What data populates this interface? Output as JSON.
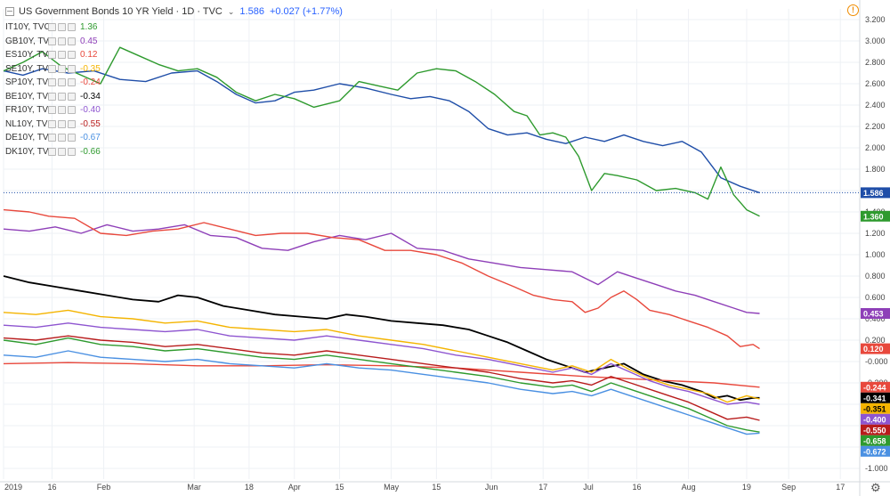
{
  "header": {
    "title": "US Government Bonds 10 YR Yield · 1D · TVC",
    "last": "1.586",
    "change": "+0.027 (+1.77%)"
  },
  "legend": [
    {
      "name": "IT10Y, TVC",
      "value": "1.36",
      "color": "#2e9a2e"
    },
    {
      "name": "GB10Y, TVC",
      "value": "0.45",
      "color": "#8e3fb8"
    },
    {
      "name": "ES10Y, TVC",
      "value": "0.12",
      "color": "#e8483c"
    },
    {
      "name": "SE10Y, TVC",
      "value": "-0.35",
      "color": "#f4b400"
    },
    {
      "name": "SP10Y, TVC",
      "value": "-0.24",
      "color": "#e8483c"
    },
    {
      "name": "BE10Y, TVC",
      "value": "-0.34",
      "color": "#000000"
    },
    {
      "name": "FR10Y, TVC",
      "value": "-0.40",
      "color": "#8e55d0"
    },
    {
      "name": "NL10Y, TVC",
      "value": "-0.55",
      "color": "#b81c1c"
    },
    {
      "name": "DE10Y, TVC",
      "value": "-0.67",
      "color": "#4a90e2"
    },
    {
      "name": "DK10Y, TVC",
      "value": "-0.66",
      "color": "#2e9a2e"
    }
  ],
  "chart_data": {
    "type": "line",
    "title": "US Government Bonds 10 YR Yield",
    "ylim": [
      -1.1,
      3.3
    ],
    "y_ticks": [
      "3.200",
      "3.000",
      "2.800",
      "2.600",
      "2.400",
      "2.200",
      "2.000",
      "1.800",
      "1.600",
      "1.400",
      "1.200",
      "1.000",
      "0.800",
      "0.600",
      "0.400",
      "0.200",
      "-0.000",
      "-0.200",
      "-0.400",
      "-0.600",
      "-0.800",
      "-1.000"
    ],
    "y_tick_values": [
      3.2,
      3.0,
      2.8,
      2.6,
      2.4,
      2.2,
      2.0,
      1.8,
      1.6,
      1.4,
      1.2,
      1.0,
      0.8,
      0.6,
      0.4,
      0.2,
      0.0,
      -0.2,
      -0.4,
      -0.6,
      -0.8,
      -1.0
    ],
    "x_ticks": [
      "2019",
      "16",
      "Feb",
      "Mar",
      "18",
      "Apr",
      "15",
      "May",
      "15",
      "Jun",
      "17",
      "Jul",
      "16",
      "Aug",
      "19",
      "Sep",
      "17"
    ],
    "x_tick_days": [
      0,
      15,
      31,
      59,
      76,
      90,
      104,
      120,
      134,
      151,
      167,
      181,
      196,
      212,
      230,
      243,
      259
    ],
    "grid": true,
    "series": [
      {
        "name": "US10Y",
        "color": "#1f4ea8",
        "last_label": "1.586",
        "x": [
          0,
          6,
          12,
          20,
          28,
          36,
          44,
          52,
          60,
          66,
          72,
          78,
          84,
          90,
          96,
          104,
          112,
          120,
          126,
          132,
          138,
          144,
          150,
          156,
          162,
          168,
          174,
          180,
          186,
          192,
          198,
          204,
          210,
          216,
          222,
          228,
          234
        ],
        "y": [
          2.72,
          2.68,
          2.74,
          2.7,
          2.72,
          2.64,
          2.62,
          2.7,
          2.72,
          2.62,
          2.5,
          2.42,
          2.44,
          2.52,
          2.54,
          2.6,
          2.56,
          2.5,
          2.46,
          2.48,
          2.44,
          2.34,
          2.18,
          2.12,
          2.14,
          2.08,
          2.04,
          2.1,
          2.06,
          2.12,
          2.06,
          2.02,
          2.06,
          1.96,
          1.72,
          1.64,
          1.58
        ]
      },
      {
        "name": "IT10Y",
        "color": "#2e9a2e",
        "last_label": "1.360",
        "x": [
          0,
          6,
          12,
          18,
          24,
          30,
          36,
          42,
          48,
          54,
          60,
          66,
          72,
          78,
          84,
          90,
          96,
          104,
          110,
          116,
          122,
          128,
          134,
          140,
          146,
          152,
          158,
          162,
          166,
          170,
          174,
          178,
          182,
          186,
          190,
          196,
          202,
          208,
          214,
          218,
          222,
          226,
          230,
          234
        ],
        "y": [
          2.72,
          2.8,
          2.9,
          2.76,
          2.68,
          2.6,
          2.94,
          2.86,
          2.78,
          2.72,
          2.74,
          2.66,
          2.52,
          2.44,
          2.5,
          2.46,
          2.38,
          2.44,
          2.62,
          2.58,
          2.54,
          2.7,
          2.74,
          2.72,
          2.62,
          2.5,
          2.34,
          2.3,
          2.12,
          2.14,
          2.1,
          1.92,
          1.6,
          1.76,
          1.74,
          1.7,
          1.6,
          1.62,
          1.58,
          1.52,
          1.82,
          1.56,
          1.42,
          1.36
        ]
      },
      {
        "name": "GB10Y",
        "color": "#8e3fb8",
        "last_label": "0.453",
        "x": [
          0,
          8,
          16,
          24,
          32,
          40,
          48,
          56,
          64,
          72,
          80,
          88,
          96,
          104,
          112,
          120,
          128,
          136,
          144,
          152,
          160,
          168,
          176,
          184,
          190,
          196,
          202,
          208,
          214,
          220,
          226,
          230,
          234
        ],
        "y": [
          1.24,
          1.22,
          1.26,
          1.2,
          1.28,
          1.22,
          1.24,
          1.28,
          1.18,
          1.16,
          1.06,
          1.04,
          1.12,
          1.18,
          1.14,
          1.2,
          1.06,
          1.04,
          0.96,
          0.92,
          0.88,
          0.86,
          0.84,
          0.72,
          0.84,
          0.78,
          0.72,
          0.66,
          0.62,
          0.56,
          0.5,
          0.46,
          0.45
        ]
      },
      {
        "name": "ES10Y",
        "color": "#e8483c",
        "last_label": "0.120",
        "x": [
          0,
          8,
          14,
          22,
          30,
          38,
          46,
          54,
          62,
          70,
          78,
          86,
          94,
          102,
          110,
          118,
          126,
          134,
          142,
          150,
          158,
          164,
          170,
          176,
          180,
          184,
          188,
          192,
          196,
          200,
          206,
          212,
          218,
          224,
          228,
          232,
          234
        ],
        "y": [
          1.42,
          1.4,
          1.36,
          1.34,
          1.2,
          1.18,
          1.22,
          1.24,
          1.3,
          1.24,
          1.18,
          1.2,
          1.2,
          1.16,
          1.14,
          1.04,
          1.04,
          1.0,
          0.92,
          0.8,
          0.7,
          0.62,
          0.58,
          0.56,
          0.46,
          0.5,
          0.6,
          0.66,
          0.58,
          0.48,
          0.44,
          0.38,
          0.32,
          0.24,
          0.14,
          0.16,
          0.12
        ]
      },
      {
        "name": "BE10Y",
        "color": "#000000",
        "last_label": "-0.341",
        "x": [
          0,
          8,
          16,
          24,
          32,
          40,
          48,
          54,
          60,
          68,
          76,
          84,
          92,
          100,
          106,
          112,
          120,
          128,
          136,
          144,
          150,
          156,
          162,
          168,
          174,
          180,
          186,
          192,
          198,
          204,
          210,
          216,
          220,
          224,
          228,
          232,
          234
        ],
        "y": [
          0.8,
          0.74,
          0.7,
          0.66,
          0.62,
          0.58,
          0.56,
          0.62,
          0.6,
          0.52,
          0.48,
          0.44,
          0.42,
          0.4,
          0.44,
          0.42,
          0.38,
          0.36,
          0.34,
          0.3,
          0.24,
          0.18,
          0.1,
          0.02,
          -0.04,
          -0.1,
          -0.06,
          -0.02,
          -0.12,
          -0.18,
          -0.22,
          -0.28,
          -0.34,
          -0.32,
          -0.36,
          -0.34,
          -0.34
        ]
      },
      {
        "name": "SP10Y",
        "color": "#e8483c",
        "last_label": "-0.244",
        "x": [
          0,
          20,
          40,
          60,
          80,
          100,
          120,
          140,
          160,
          180,
          200,
          220,
          234
        ],
        "y": [
          -0.02,
          -0.01,
          -0.02,
          -0.04,
          -0.04,
          -0.03,
          -0.04,
          -0.06,
          -0.1,
          -0.14,
          -0.17,
          -0.2,
          -0.24
        ]
      },
      {
        "name": "SE10Y",
        "color": "#f4b400",
        "last_label": "-0.351",
        "x": [
          0,
          10,
          20,
          30,
          40,
          50,
          60,
          70,
          80,
          90,
          100,
          110,
          120,
          130,
          140,
          150,
          160,
          170,
          176,
          182,
          188,
          194,
          200,
          206,
          212,
          218,
          224,
          230,
          234
        ],
        "y": [
          0.46,
          0.44,
          0.48,
          0.42,
          0.4,
          0.36,
          0.38,
          0.32,
          0.3,
          0.28,
          0.3,
          0.24,
          0.2,
          0.16,
          0.1,
          0.04,
          -0.02,
          -0.08,
          -0.04,
          -0.1,
          0.02,
          -0.08,
          -0.16,
          -0.22,
          -0.26,
          -0.3,
          -0.38,
          -0.32,
          -0.35
        ]
      },
      {
        "name": "FR10Y",
        "color": "#8e55d0",
        "last_label": "-0.400",
        "x": [
          0,
          10,
          20,
          30,
          40,
          50,
          60,
          70,
          80,
          90,
          100,
          110,
          120,
          130,
          140,
          150,
          160,
          170,
          176,
          182,
          188,
          194,
          200,
          206,
          212,
          218,
          224,
          230,
          234
        ],
        "y": [
          0.34,
          0.32,
          0.36,
          0.32,
          0.3,
          0.28,
          0.3,
          0.24,
          0.22,
          0.2,
          0.24,
          0.2,
          0.16,
          0.12,
          0.06,
          0.02,
          -0.04,
          -0.1,
          -0.06,
          -0.12,
          -0.02,
          -0.1,
          -0.18,
          -0.24,
          -0.28,
          -0.34,
          -0.4,
          -0.38,
          -0.4
        ]
      },
      {
        "name": "NL10Y",
        "color": "#b81c1c",
        "last_label": "-0.550",
        "x": [
          0,
          10,
          20,
          30,
          40,
          50,
          60,
          70,
          80,
          90,
          100,
          110,
          120,
          130,
          140,
          150,
          160,
          170,
          176,
          182,
          188,
          194,
          200,
          206,
          212,
          218,
          224,
          230,
          234
        ],
        "y": [
          0.22,
          0.2,
          0.24,
          0.2,
          0.18,
          0.14,
          0.16,
          0.12,
          0.08,
          0.06,
          0.1,
          0.06,
          0.02,
          -0.02,
          -0.06,
          -0.1,
          -0.16,
          -0.2,
          -0.18,
          -0.22,
          -0.14,
          -0.2,
          -0.26,
          -0.32,
          -0.38,
          -0.46,
          -0.54,
          -0.52,
          -0.55
        ]
      },
      {
        "name": "DK10Y",
        "color": "#2e9a2e",
        "last_label": "-0.658",
        "x": [
          0,
          10,
          20,
          30,
          40,
          50,
          60,
          70,
          80,
          90,
          100,
          110,
          120,
          130,
          140,
          150,
          160,
          170,
          176,
          182,
          188,
          194,
          200,
          206,
          212,
          218,
          224,
          230,
          234
        ],
        "y": [
          0.2,
          0.16,
          0.22,
          0.16,
          0.14,
          0.1,
          0.12,
          0.08,
          0.04,
          0.02,
          0.06,
          0.02,
          -0.02,
          -0.06,
          -0.1,
          -0.14,
          -0.2,
          -0.24,
          -0.22,
          -0.28,
          -0.2,
          -0.26,
          -0.32,
          -0.38,
          -0.44,
          -0.52,
          -0.6,
          -0.64,
          -0.66
        ]
      },
      {
        "name": "DE10Y",
        "color": "#4a90e2",
        "last_label": "-0.672",
        "x": [
          0,
          10,
          20,
          30,
          40,
          50,
          60,
          70,
          80,
          90,
          100,
          110,
          120,
          130,
          140,
          150,
          160,
          170,
          176,
          182,
          188,
          194,
          200,
          206,
          212,
          218,
          224,
          230,
          234
        ],
        "y": [
          0.06,
          0.04,
          0.1,
          0.04,
          0.02,
          0.0,
          0.02,
          -0.02,
          -0.04,
          -0.06,
          -0.02,
          -0.06,
          -0.08,
          -0.12,
          -0.16,
          -0.2,
          -0.26,
          -0.3,
          -0.28,
          -0.32,
          -0.26,
          -0.32,
          -0.38,
          -0.44,
          -0.5,
          -0.56,
          -0.62,
          -0.68,
          -0.67
        ]
      }
    ]
  }
}
